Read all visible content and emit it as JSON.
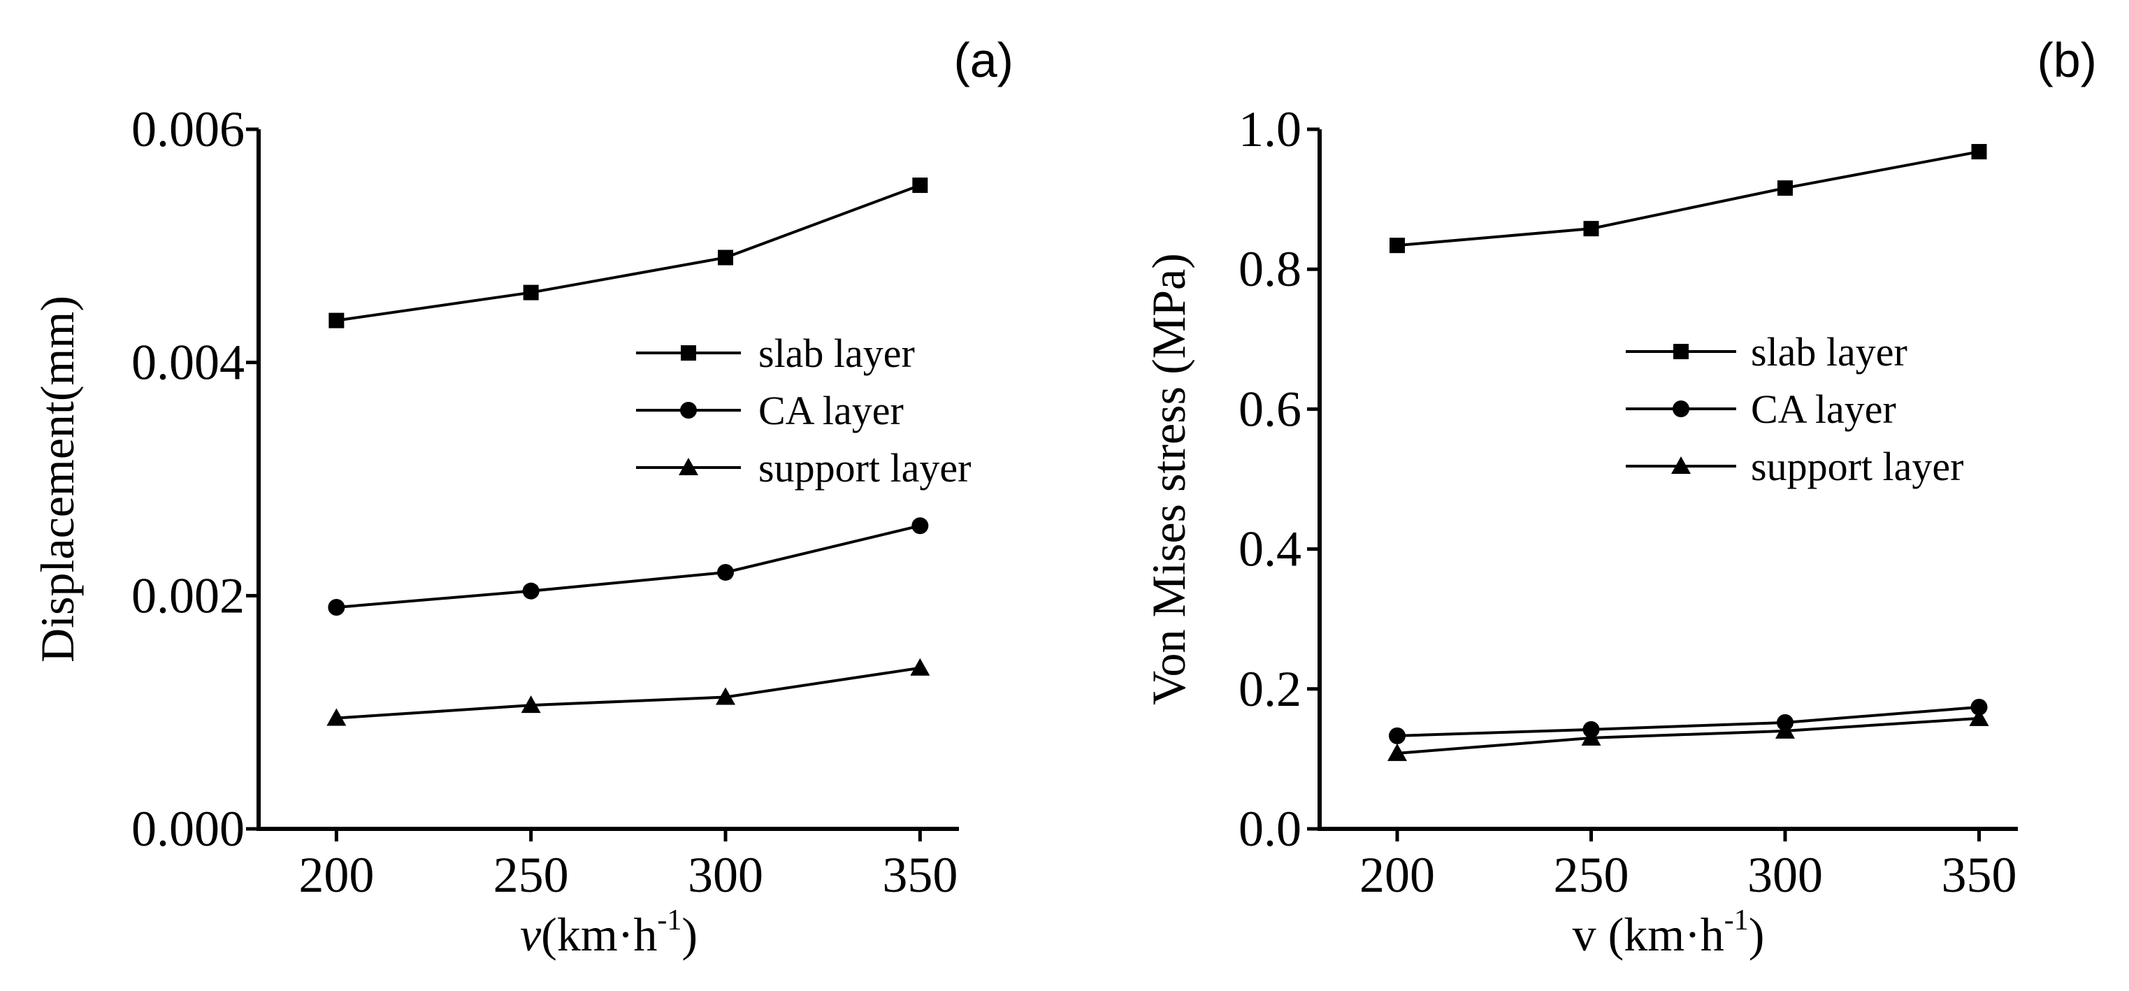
{
  "chart_data": [
    {
      "type": "line",
      "panel_label": "(a)",
      "title": "",
      "xlabel": "v",
      "xlabel_unit": "(km·h",
      "xlabel_sup": "-1",
      "xlabel_close": ")",
      "ylabel": "Displacement(mm)",
      "xlim": [
        180,
        360
      ],
      "ylim": [
        0,
        0.006
      ],
      "x": [
        200,
        250,
        300,
        350
      ],
      "xticks": [
        "200",
        "250",
        "300",
        "350"
      ],
      "yticks": [
        {
          "value": 0.0,
          "label": "0.000"
        },
        {
          "value": 0.002,
          "label": "0.002"
        },
        {
          "value": 0.004,
          "label": "0.004"
        },
        {
          "value": 0.006,
          "label": "0.006"
        }
      ],
      "legend_position": "center-right",
      "series": [
        {
          "name": "slab layer",
          "marker": "square",
          "values": [
            0.00436,
            0.0046,
            0.0049,
            0.00552
          ]
        },
        {
          "name": "CA layer",
          "marker": "circle",
          "values": [
            0.0019,
            0.00204,
            0.0022,
            0.0026
          ]
        },
        {
          "name": "support layer",
          "marker": "triangle",
          "values": [
            0.00095,
            0.00106,
            0.00113,
            0.00138
          ]
        }
      ]
    },
    {
      "type": "line",
      "panel_label": "(b)",
      "title": "",
      "xlabel": "v (km·h",
      "xlabel_sup": "-1",
      "xlabel_close": ")",
      "ylabel": "Von Mises stress (MPa)",
      "xlim": [
        180,
        360
      ],
      "ylim": [
        0,
        1.0
      ],
      "x": [
        200,
        250,
        300,
        350
      ],
      "xticks": [
        "200",
        "250",
        "300",
        "350"
      ],
      "yticks": [
        {
          "value": 0.0,
          "label": "0.0"
        },
        {
          "value": 0.2,
          "label": "0.2"
        },
        {
          "value": 0.4,
          "label": "0.4"
        },
        {
          "value": 0.6,
          "label": "0.6"
        },
        {
          "value": 0.8,
          "label": "0.8"
        },
        {
          "value": 1.0,
          "label": "1.0"
        }
      ],
      "legend_position": "center-right",
      "series": [
        {
          "name": "slab layer",
          "marker": "square",
          "values": [
            0.834,
            0.858,
            0.916,
            0.968
          ]
        },
        {
          "name": "CA layer",
          "marker": "circle",
          "values": [
            0.133,
            0.142,
            0.152,
            0.174
          ]
        },
        {
          "name": "support layer",
          "marker": "triangle",
          "values": [
            0.108,
            0.13,
            0.14,
            0.158
          ]
        }
      ]
    }
  ]
}
